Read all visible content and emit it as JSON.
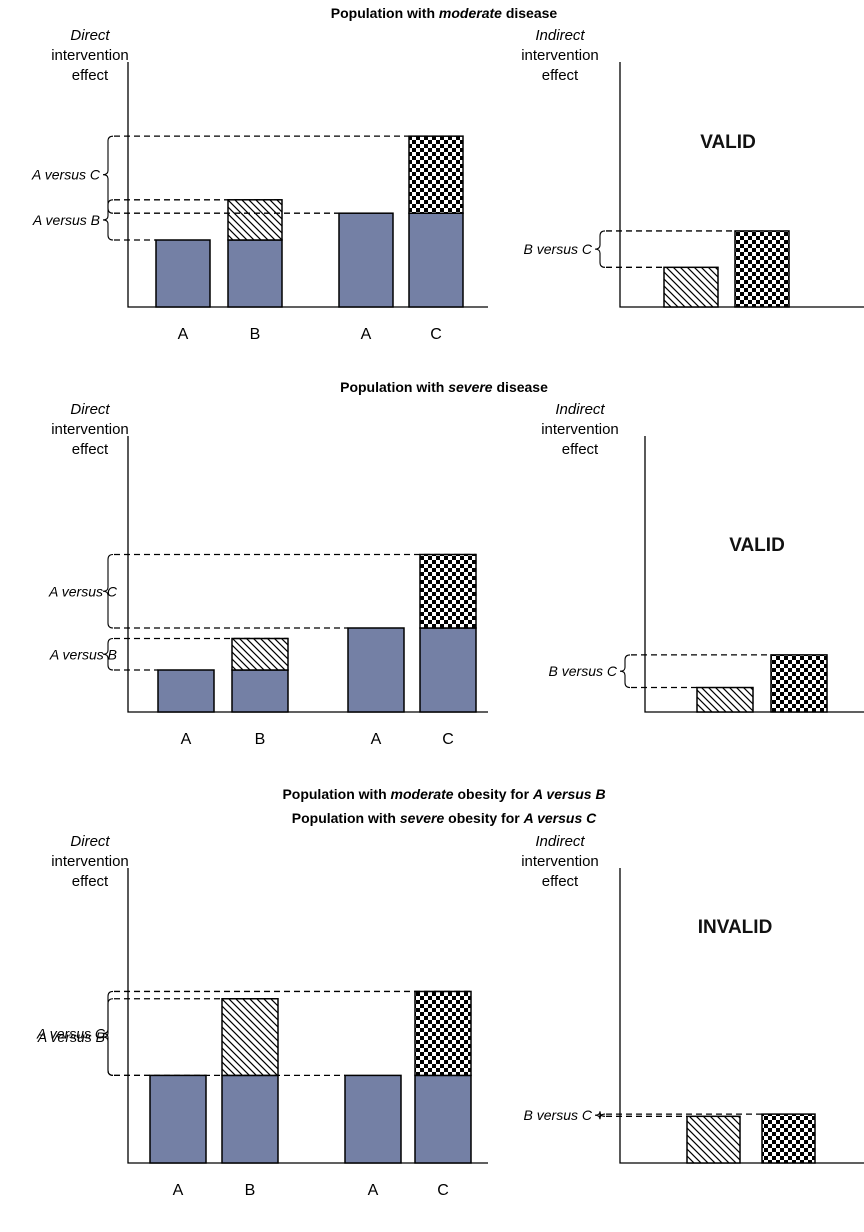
{
  "panels": [
    {
      "title_parts": [
        [
          "Population with ",
          false
        ],
        [
          "moderate",
          true
        ],
        [
          " disease",
          false
        ]
      ],
      "title2_parts": [],
      "direct_label": [
        "Direct",
        "intervention",
        "effect"
      ],
      "indirect_label": [
        "Indirect",
        "intervention",
        "effect"
      ],
      "verdict": "VALID",
      "comparisons": {
        "avc": "A versus C",
        "avb": "A versus B",
        "bvc": "B versus C"
      },
      "categories": [
        "A",
        "B",
        "A",
        "C"
      ],
      "values": {
        "A_in_AB": 1.0,
        "B_total": 1.6,
        "A_in_AC": 1.4,
        "C_total": 2.55,
        "B_effect": 0.6,
        "C_effect": 1.15
      }
    },
    {
      "title_parts": [
        [
          "Population with ",
          false
        ],
        [
          "severe",
          true
        ],
        [
          " disease",
          false
        ]
      ],
      "title2_parts": [],
      "direct_label": [
        "Direct",
        "intervention",
        "effect"
      ],
      "indirect_label": [
        "Indirect",
        "intervention",
        "effect"
      ],
      "verdict": "VALID",
      "comparisons": {
        "avc": "A versus C",
        "avb": "A versus B",
        "bvc": "B versus C"
      },
      "categories": [
        "A",
        "B",
        "A",
        "C"
      ],
      "values": {
        "A_in_AB": 0.6,
        "B_total": 1.05,
        "A_in_AC": 1.2,
        "C_total": 2.25,
        "B_effect": 0.45,
        "C_effect": 1.05
      }
    },
    {
      "title_parts": [
        [
          "Population with ",
          false
        ],
        [
          "moderate",
          true
        ],
        [
          " obesity for ",
          false
        ],
        [
          "A versus B",
          true
        ]
      ],
      "title2_parts": [
        [
          "Population with ",
          false
        ],
        [
          "severe",
          true
        ],
        [
          " obesity for ",
          false
        ],
        [
          "A versus C",
          true
        ]
      ],
      "direct_label": [
        "Direct",
        "intervention",
        "effect"
      ],
      "indirect_label": [
        "Indirect",
        "intervention",
        "effect"
      ],
      "verdict": "INVALID",
      "comparisons": {
        "avc": "A versus C",
        "avb": "A versus B",
        "bvc": "B versus C"
      },
      "categories": [
        "A",
        "B",
        "A",
        "C"
      ],
      "values": {
        "A_in_AB": 1.2,
        "B_total": 2.25,
        "A_in_AC": 1.2,
        "C_total": 2.35,
        "B_effect": 1.05,
        "C_effect": 1.1
      }
    }
  ],
  "colors": {
    "base_bar": "#7480a5",
    "ink": "#000000"
  },
  "fills": {
    "B": "diagonal-hatch",
    "C": "checkerboard"
  }
}
